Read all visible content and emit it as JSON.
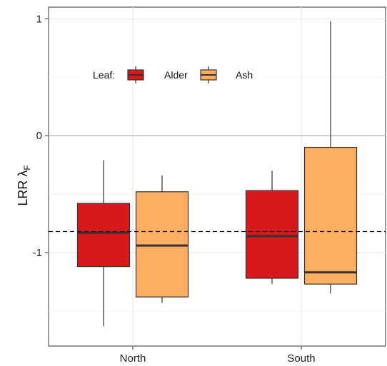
{
  "chart_data": {
    "type": "boxplot",
    "categories": [
      "North",
      "South"
    ],
    "ylabel": "LRR λ",
    "ylabel_subscript": "F",
    "ylim": [
      -1.8,
      1.1
    ],
    "yticks": [
      1,
      0,
      -1
    ],
    "ytick_labels": [
      "1",
      "0",
      "-1"
    ],
    "grid": true,
    "reference_line": {
      "y": 0,
      "style": "solid"
    },
    "mean_line": {
      "y": -0.82,
      "style": "dashed"
    },
    "legend": {
      "title": "Leaf:",
      "placement": "top-left",
      "entries": [
        {
          "name": "Alder",
          "color": "#d7191c"
        },
        {
          "name": "Ash",
          "color": "#fdae61"
        }
      ]
    },
    "series": [
      {
        "name": "Alder",
        "color": "#d7191c",
        "boxes": [
          {
            "category": "North",
            "min": -1.63,
            "q1": -1.12,
            "median": -0.83,
            "q3": -0.58,
            "max": -0.21
          },
          {
            "category": "South",
            "min": -1.27,
            "q1": -1.22,
            "median": -0.86,
            "q3": -0.47,
            "max": -0.3
          }
        ]
      },
      {
        "name": "Ash",
        "color": "#fdae61",
        "boxes": [
          {
            "category": "North",
            "min": -1.43,
            "q1": -1.38,
            "median": -0.94,
            "q3": -0.48,
            "max": -0.34
          },
          {
            "category": "South",
            "min": -1.35,
            "q1": -1.27,
            "median": -1.17,
            "q3": -0.1,
            "max": 0.98
          }
        ]
      }
    ]
  }
}
